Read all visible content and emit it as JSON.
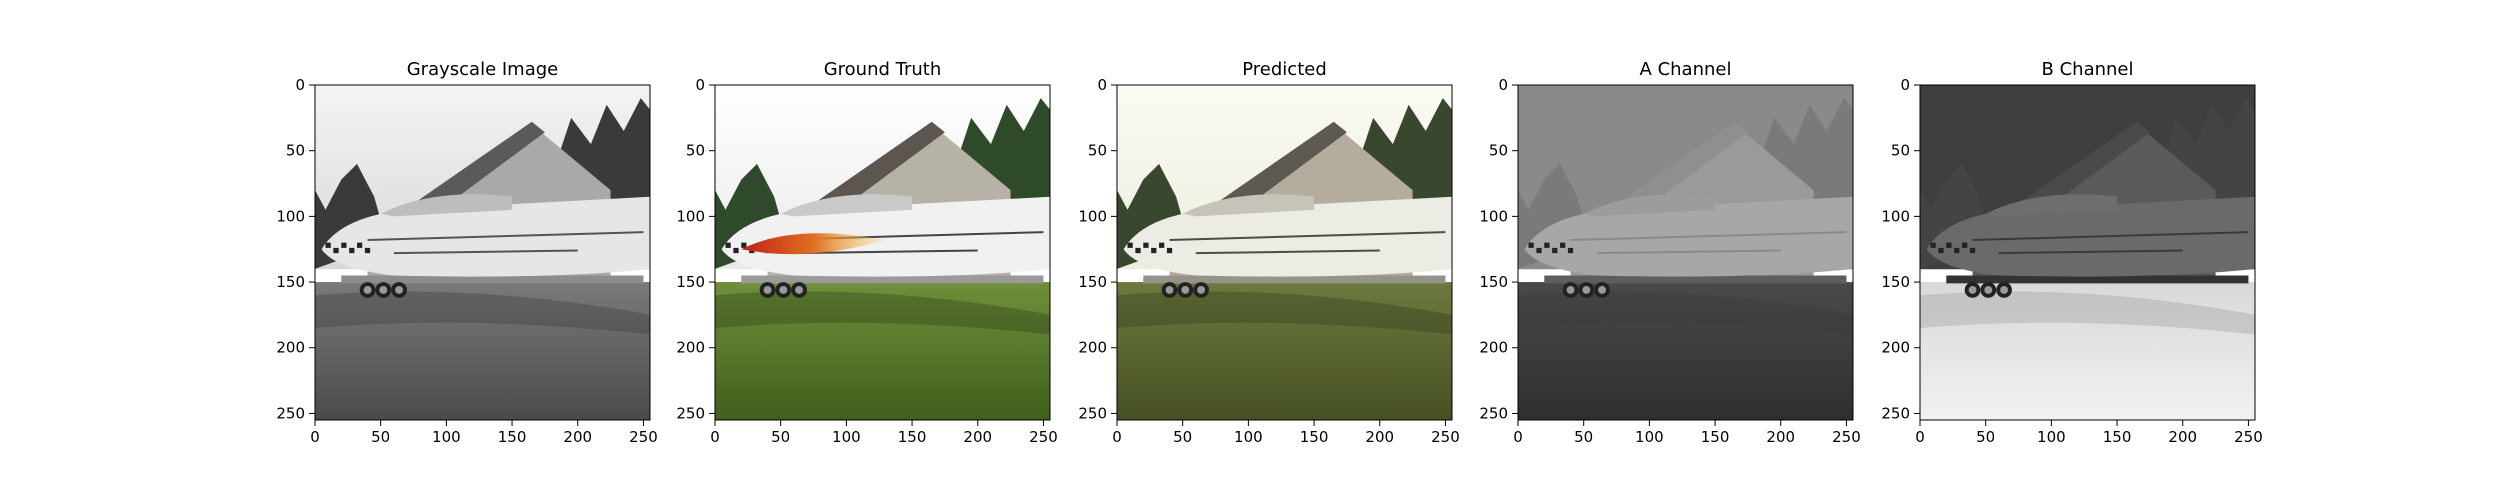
{
  "chart_data": [
    {
      "type": "image",
      "title": "Grayscale Image",
      "xticks": [
        0,
        50,
        100,
        150,
        200,
        250
      ],
      "yticks": [
        0,
        50,
        100,
        150,
        200,
        250
      ],
      "xlim": [
        0,
        255
      ],
      "ylim": [
        255,
        0
      ],
      "render": "grayscale"
    },
    {
      "type": "image",
      "title": "Ground Truth",
      "xticks": [
        0,
        50,
        100,
        150,
        200,
        250
      ],
      "yticks": [
        0,
        50,
        100,
        150,
        200,
        250
      ],
      "xlim": [
        0,
        255
      ],
      "ylim": [
        255,
        0
      ],
      "render": "color"
    },
    {
      "type": "image",
      "title": "Predicted",
      "xticks": [
        0,
        50,
        100,
        150,
        200,
        250
      ],
      "yticks": [
        0,
        50,
        100,
        150,
        200,
        250
      ],
      "xlim": [
        0,
        255
      ],
      "ylim": [
        255,
        0
      ],
      "render": "muted"
    },
    {
      "type": "image",
      "title": "A Channel",
      "xticks": [
        0,
        50,
        100,
        150,
        200,
        250
      ],
      "yticks": [
        0,
        50,
        100,
        150,
        200,
        250
      ],
      "xlim": [
        0,
        255
      ],
      "ylim": [
        255,
        0
      ],
      "render": "channel-a"
    },
    {
      "type": "image",
      "title": "B Channel",
      "xticks": [
        0,
        50,
        100,
        150,
        200,
        250
      ],
      "yticks": [
        0,
        50,
        100,
        150,
        200,
        250
      ],
      "xlim": [
        0,
        255
      ],
      "ylim": [
        255,
        0
      ],
      "render": "channel-b"
    }
  ]
}
